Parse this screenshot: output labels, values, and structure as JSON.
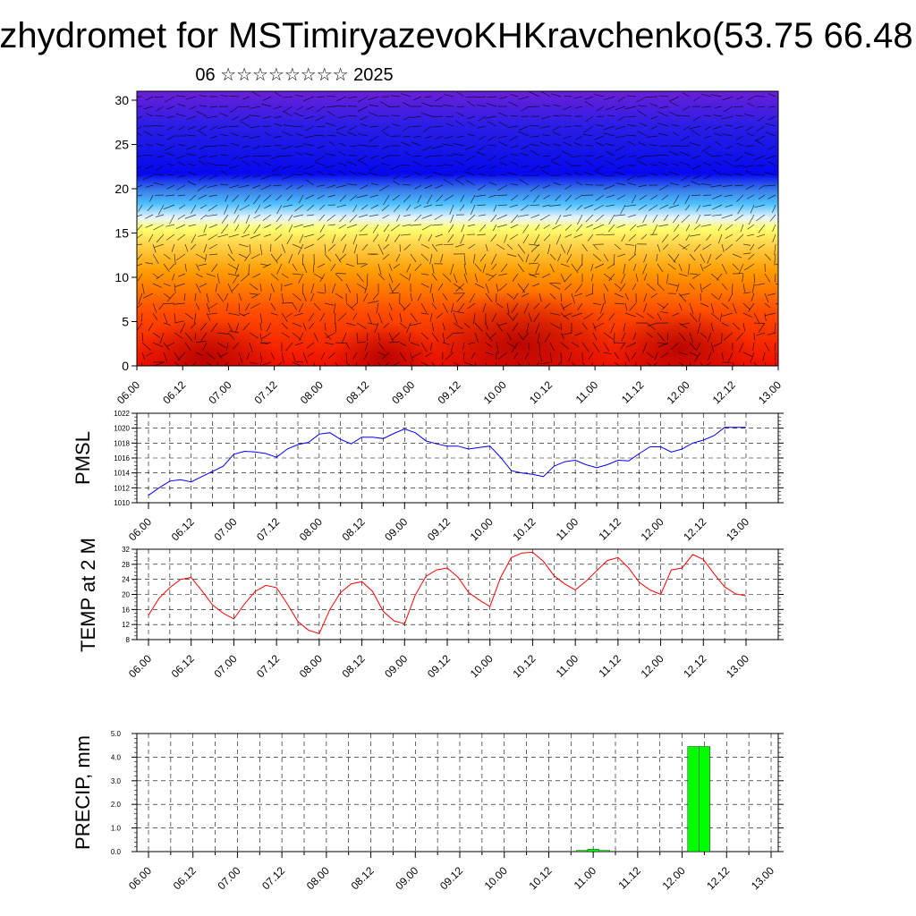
{
  "header": {
    "title": "zhydromet for MSTimiryazevoKHKravchenko(53.75 66.48",
    "subtitle": "06 ☆☆☆☆☆☆☆☆ 2025"
  },
  "x_tick_labels": [
    "06.00",
    "06.12",
    "07.00",
    "07.12",
    "08.00",
    "08.12",
    "09.00",
    "09.12",
    "10.00",
    "10.12",
    "11.00",
    "11.12",
    "12.00",
    "12.12",
    "13.00"
  ],
  "colors": {
    "pmsl_line": "#0000ff",
    "temp_line": "#ff0000",
    "precip_bar": "#00ff00",
    "wind_arrows": "#000000"
  },
  "chart_data": [
    {
      "type": "heatmap",
      "title": "",
      "ylim": [
        0,
        30
      ],
      "y_ticks": [
        0,
        5,
        10,
        15,
        20,
        25,
        30
      ],
      "x_domain": [
        0,
        7
      ],
      "colormap": "blue (top) to red (bottom), with wind arrow overlay"
    },
    {
      "type": "line",
      "ylabel": "PMSL",
      "ylim": [
        1010,
        1022
      ],
      "y_ticks": [
        1010,
        1012,
        1014,
        1016,
        1018,
        1020,
        1022
      ],
      "x_domain": [
        0,
        7
      ],
      "series": [
        {
          "x": [
            0,
            0.125,
            0.25,
            0.375,
            0.5,
            0.625,
            0.75,
            0.875,
            1.0,
            1.125,
            1.25,
            1.375,
            1.5,
            1.625,
            1.75,
            1.875,
            2.0,
            2.125,
            2.25,
            2.375,
            2.5,
            2.625,
            2.75,
            2.875,
            3.0,
            3.125,
            3.25,
            3.375,
            3.5,
            3.625,
            3.75,
            3.875,
            4.0,
            4.125,
            4.25,
            4.375,
            4.5,
            4.625,
            4.75,
            4.875,
            5.0,
            5.125,
            5.25,
            5.375,
            5.5,
            5.625,
            5.75,
            5.875,
            6.0,
            6.125,
            6.25,
            6.375,
            6.5,
            6.625,
            6.75,
            6.875,
            7.0
          ],
          "values": [
            1011.0,
            1012.0,
            1012.9,
            1013.1,
            1012.8,
            1013.5,
            1014.2,
            1014.9,
            1016.5,
            1016.9,
            1016.8,
            1016.6,
            1016.1,
            1017.2,
            1017.8,
            1018.1,
            1019.2,
            1019.4,
            1018.5,
            1017.9,
            1018.8,
            1018.8,
            1018.6,
            1019.3,
            1019.9,
            1019.4,
            1018.3,
            1017.9,
            1017.6,
            1017.6,
            1017.2,
            1017.4,
            1017.6,
            1016.1,
            1014.3,
            1014.0,
            1013.8,
            1013.5,
            1014.9,
            1015.5,
            1015.7,
            1015.1,
            1014.7,
            1015.1,
            1015.7,
            1015.6,
            1016.6,
            1017.5,
            1017.5,
            1016.8,
            1017.2,
            1018.0,
            1018.4,
            1019.0,
            1020.1,
            1020.1,
            1020.1
          ]
        }
      ]
    },
    {
      "type": "line",
      "ylabel": "TEMP at 2 M",
      "ylim": [
        8,
        32
      ],
      "y_ticks": [
        8,
        12,
        16,
        20,
        24,
        28,
        32
      ],
      "x_domain": [
        0,
        7
      ],
      "series": [
        {
          "x": [
            0,
            0.125,
            0.25,
            0.375,
            0.5,
            0.625,
            0.75,
            0.875,
            1.0,
            1.125,
            1.25,
            1.375,
            1.5,
            1.625,
            1.75,
            1.875,
            2.0,
            2.125,
            2.25,
            2.375,
            2.5,
            2.625,
            2.75,
            2.875,
            3.0,
            3.125,
            3.25,
            3.375,
            3.5,
            3.625,
            3.75,
            3.875,
            4.0,
            4.125,
            4.25,
            4.375,
            4.5,
            4.625,
            4.75,
            4.875,
            5.0,
            5.125,
            5.25,
            5.375,
            5.5,
            5.625,
            5.75,
            5.875,
            6.0,
            6.125,
            6.25,
            6.375,
            6.5,
            6.625,
            6.75,
            6.875,
            7.0
          ],
          "values": [
            14.5,
            19.0,
            21.8,
            24.0,
            24.5,
            21.0,
            17.2,
            15.0,
            13.5,
            17.5,
            20.8,
            22.4,
            21.8,
            17.5,
            12.8,
            10.5,
            9.6,
            16.0,
            20.5,
            22.8,
            23.4,
            20.8,
            15.5,
            13.0,
            12.2,
            19.8,
            24.8,
            26.5,
            27.0,
            24.6,
            20.5,
            18.5,
            16.8,
            24.5,
            29.8,
            31.0,
            31.2,
            28.8,
            25.0,
            22.8,
            21.2,
            23.5,
            26.3,
            29.0,
            29.8,
            27.0,
            23.2,
            21.2,
            20.0,
            26.5,
            27.0,
            30.6,
            29.3,
            25.5,
            22.0,
            20.2,
            19.6
          ]
        }
      ]
    },
    {
      "type": "bar",
      "ylabel": "PRECIP, mm",
      "ylim": [
        0,
        5
      ],
      "y_ticks": [
        0.0,
        1.0,
        2.0,
        3.0,
        4.0,
        5.0
      ],
      "y_tick_labels": [
        "0.0",
        "1.0",
        "2.0",
        "3.0",
        "4.0",
        "5.0"
      ],
      "x_domain": [
        0,
        7
      ],
      "series": [
        {
          "x": [
            4.875,
            5.0,
            5.125,
            6.125,
            6.25
          ],
          "values": [
            0.05,
            0.1,
            0.05,
            4.45,
            4.45
          ]
        }
      ]
    }
  ]
}
